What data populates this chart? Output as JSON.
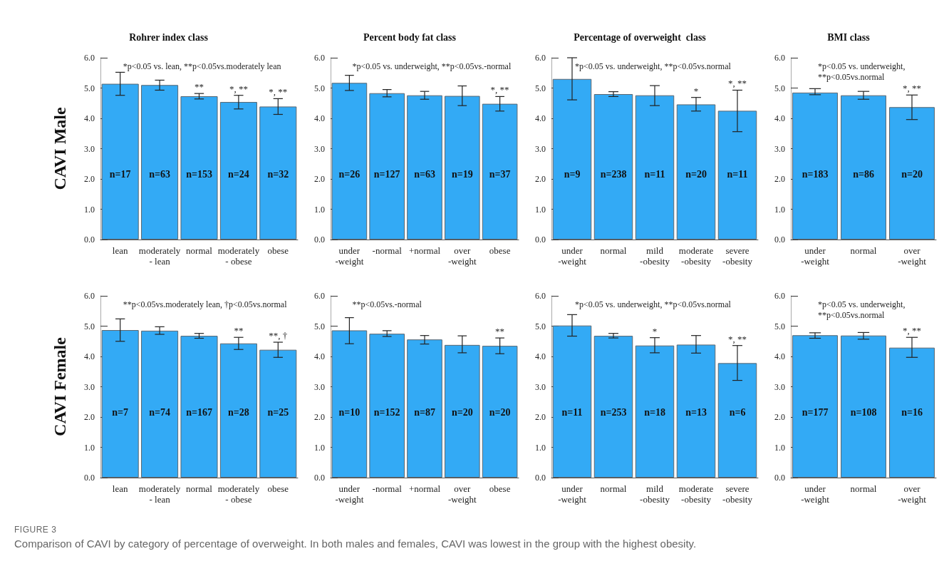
{
  "chart_data": [
    {
      "type": "bar",
      "title": "Rohrer index class",
      "ylabel": "CAVI Male",
      "categories": [
        "lean",
        "moderately\n- lean",
        "normal",
        "moderately\n- obese",
        "obese"
      ],
      "values": [
        5.14,
        5.1,
        4.73,
        4.54,
        4.39
      ],
      "errors": [
        [
          4.76,
          5.52
        ],
        [
          4.93,
          5.26
        ],
        [
          4.64,
          4.82
        ],
        [
          4.31,
          4.76
        ],
        [
          4.13,
          4.65
        ]
      ],
      "color": "#33aaf5",
      "ylim": [
        0,
        6
      ],
      "yticks": [
        {
          "value": 0,
          "label": "0.0"
        },
        {
          "value": 1,
          "label": "1.0"
        },
        {
          "value": 2,
          "label": "2.0"
        },
        {
          "value": 3,
          "label": "3.0"
        },
        {
          "value": 4,
          "label": "4.0"
        },
        {
          "value": 5,
          "label": "5.0"
        },
        {
          "value": 6,
          "label": "6.0"
        }
      ],
      "annotations": [
        "*p<0.05 vs. lean, **p<0.05vs.moderately lean",
        "n=17",
        "n=63",
        "n=153",
        "n=24",
        "n=32",
        {
          "text": "**",
          "x": "normal",
          "y": 4.82
        },
        {
          "text": "*, **",
          "x": "moderately\n- obese",
          "y": 4.76
        },
        {
          "text": "*, **",
          "x": "obese",
          "y": 4.65
        }
      ]
    },
    {
      "type": "bar",
      "title": "Percent body fat class",
      "categories": [
        "under\n-weight",
        "-normal",
        "+normal",
        "over\n-weight",
        "obese"
      ],
      "values": [
        5.17,
        4.83,
        4.76,
        4.74,
        4.48
      ],
      "errors": [
        [
          4.92,
          5.42
        ],
        [
          4.71,
          4.95
        ],
        [
          4.63,
          4.89
        ],
        [
          4.42,
          5.07
        ],
        [
          4.24,
          4.72
        ]
      ],
      "color": "#33aaf5",
      "ylim": [
        0,
        6
      ],
      "yticks": [
        {
          "value": 0,
          "label": "0.0"
        },
        {
          "value": 1,
          "label": "1.0"
        },
        {
          "value": 2,
          "label": "2.0"
        },
        {
          "value": 3,
          "label": "3.0"
        },
        {
          "value": 4,
          "label": "4.0"
        },
        {
          "value": 5,
          "label": "5.0"
        },
        {
          "value": 6,
          "label": "6.0"
        }
      ],
      "annotations": [
        "*p<0.05 vs. underweight, **p<0.05vs.-normal",
        "n=26",
        "n=127",
        "n=63",
        "n=19",
        "n=37",
        {
          "text": "*, **",
          "x": "obese",
          "y": 4.72
        }
      ]
    },
    {
      "type": "bar",
      "title": "Percentage of overweight  class",
      "categories": [
        "under\n-weight",
        "normal",
        "mild\n-obesity",
        "moderate\n-obesity",
        "severe\n-obesity"
      ],
      "values": [
        5.3,
        4.8,
        4.76,
        4.46,
        4.25
      ],
      "errors": [
        [
          4.61,
          6.0
        ],
        [
          4.72,
          4.88
        ],
        [
          4.42,
          5.08
        ],
        [
          4.24,
          4.69
        ],
        [
          3.56,
          4.93
        ]
      ],
      "color": "#33aaf5",
      "ylim": [
        0,
        6
      ],
      "yticks": [
        {
          "value": 0,
          "label": "0.0"
        },
        {
          "value": 1,
          "label": "1.0"
        },
        {
          "value": 2,
          "label": "2.0"
        },
        {
          "value": 3,
          "label": "3.0"
        },
        {
          "value": 4,
          "label": "4.0"
        },
        {
          "value": 5,
          "label": "5.0"
        },
        {
          "value": 6,
          "label": "6.0"
        }
      ],
      "annotations": [
        "*p<0.05 vs. underweight, **p<0.05vs.normal",
        "n=9",
        "n=238",
        "n=11",
        "n=20",
        "n=11",
        {
          "text": "*",
          "x": "moderate\n-obesity",
          "y": 4.69
        },
        {
          "text": "*, **",
          "x": "severe\n-obesity",
          "y": 4.93
        }
      ]
    },
    {
      "type": "bar",
      "title": "BMI class",
      "categories": [
        "under\n-weight",
        "normal",
        "over\n-weight"
      ],
      "values": [
        4.85,
        4.76,
        4.37
      ],
      "errors": [
        [
          4.78,
          4.98
        ],
        [
          4.63,
          4.89
        ],
        [
          3.96,
          4.77
        ]
      ],
      "color": "#33aaf5",
      "ylim": [
        0,
        6
      ],
      "yticks": [
        {
          "value": 0,
          "label": "0.0"
        },
        {
          "value": 1,
          "label": "1.0"
        },
        {
          "value": 2,
          "label": "2.0"
        },
        {
          "value": 3,
          "label": "3.0"
        },
        {
          "value": 4,
          "label": "4.0"
        },
        {
          "value": 5,
          "label": "5.0"
        },
        {
          "value": 6,
          "label": "6.0"
        }
      ],
      "annotations": [
        "*p<0.05 vs. underweight,\n**p<0.05vs.normal",
        "n=183",
        "n=86",
        "n=20",
        {
          "text": "*, **",
          "x": "over\n-weight",
          "y": 4.77
        }
      ]
    },
    {
      "type": "bar",
      "ylabel": "CAVI Female",
      "categories": [
        "lean",
        "moderately\n- lean",
        "normal",
        "moderately\n- obese",
        "obese"
      ],
      "values": [
        4.87,
        4.85,
        4.68,
        4.43,
        4.22
      ],
      "errors": [
        [
          4.5,
          5.24
        ],
        [
          4.73,
          4.98
        ],
        [
          4.6,
          4.76
        ],
        [
          4.23,
          4.63
        ],
        [
          3.97,
          4.47
        ]
      ],
      "color": "#33aaf5",
      "ylim": [
        0,
        6
      ],
      "yticks": [
        {
          "value": 0,
          "label": "0.0"
        },
        {
          "value": 1,
          "label": "1.0"
        },
        {
          "value": 2,
          "label": "2.0"
        },
        {
          "value": 3,
          "label": "3.0"
        },
        {
          "value": 4,
          "label": "4.0"
        },
        {
          "value": 5,
          "label": "5.0"
        },
        {
          "value": 6,
          "label": "6.0"
        }
      ],
      "annotations": [
        "**p<0.05vs.moderately lean, †p<0.05vs.normal",
        "n=7",
        "n=74",
        "n=167",
        "n=28",
        "n=25",
        {
          "text": "**",
          "x": "moderately\n- obese",
          "y": 4.63
        },
        {
          "text": "**, †",
          "x": "obese",
          "y": 4.47
        }
      ]
    },
    {
      "type": "bar",
      "categories": [
        "under\n-weight",
        "-normal",
        "+normal",
        "over\n-weight",
        "obese"
      ],
      "values": [
        4.86,
        4.75,
        4.56,
        4.38,
        4.35
      ],
      "errors": [
        [
          4.42,
          5.28
        ],
        [
          4.66,
          4.85
        ],
        [
          4.41,
          4.69
        ],
        [
          4.12,
          4.68
        ],
        [
          4.09,
          4.61
        ]
      ],
      "color": "#33aaf5",
      "ylim": [
        0,
        6
      ],
      "yticks": [
        {
          "value": 0,
          "label": "0.0"
        },
        {
          "value": 1,
          "label": "1.0"
        },
        {
          "value": 2,
          "label": "2.0"
        },
        {
          "value": 3,
          "label": "3.0"
        },
        {
          "value": 4,
          "label": "4.0"
        },
        {
          "value": 5,
          "label": "5.0"
        },
        {
          "value": 6,
          "label": "6.0"
        }
      ],
      "annotations": [
        "**p<0.05vs.-normal",
        "n=10",
        "n=152",
        "n=87",
        "n=20",
        "n=20",
        {
          "text": "**",
          "x": "obese",
          "y": 4.61
        }
      ]
    },
    {
      "type": "bar",
      "categories": [
        "under\n-weight",
        "normal",
        "mild\n-obesity",
        "moderate\n-obesity",
        "severe\n-obesity"
      ],
      "values": [
        5.02,
        4.68,
        4.36,
        4.39,
        3.78
      ],
      "errors": [
        [
          4.67,
          5.38
        ],
        [
          4.61,
          4.76
        ],
        [
          4.12,
          4.62
        ],
        [
          4.11,
          4.69
        ],
        [
          3.21,
          4.36
        ]
      ],
      "color": "#33aaf5",
      "ylim": [
        0,
        6
      ],
      "yticks": [
        {
          "value": 0,
          "label": "0.0"
        },
        {
          "value": 1,
          "label": "1.0"
        },
        {
          "value": 2,
          "label": "2.0"
        },
        {
          "value": 3,
          "label": "3.0"
        },
        {
          "value": 4,
          "label": "4.0"
        },
        {
          "value": 5,
          "label": "5.0"
        },
        {
          "value": 6,
          "label": "6.0"
        }
      ],
      "annotations": [
        "*p<0.05 vs. underweight, **p<0.05vs.normal",
        "n=11",
        "n=253",
        "n=18",
        "n=13",
        "n=6",
        {
          "text": "*",
          "x": "mild\n-obesity",
          "y": 4.62
        },
        {
          "text": "*, **",
          "x": "severe\n-obesity",
          "y": 4.36
        }
      ]
    },
    {
      "type": "bar",
      "categories": [
        "under\n-weight",
        "normal",
        "over\n-weight"
      ],
      "values": [
        4.7,
        4.69,
        4.29
      ],
      "errors": [
        [
          4.6,
          4.78
        ],
        [
          4.57,
          4.79
        ],
        [
          3.97,
          4.63
        ]
      ],
      "color": "#33aaf5",
      "ylim": [
        0,
        6
      ],
      "yticks": [
        {
          "value": 0,
          "label": "0.0"
        },
        {
          "value": 1,
          "label": "1.0"
        },
        {
          "value": 2,
          "label": "2.0"
        },
        {
          "value": 3,
          "label": "3.0"
        },
        {
          "value": 4,
          "label": "4.0"
        },
        {
          "value": 5,
          "label": "5.0"
        },
        {
          "value": 6,
          "label": "6.0"
        }
      ],
      "annotations": [
        "*p<0.05 vs. underweight,\n**p<0.05vs.normal",
        "n=177",
        "n=108",
        "n=16",
        {
          "text": "*, **",
          "x": "over\n-weight",
          "y": 4.63
        }
      ]
    },
    {
      "type": "other",
      "title": "FIGURE 3",
      "annotations": [
        "Comparison of CAVI by category of percentage of overweight. In both males and females, CAVI was lowest in the group with the highest obesity."
      ]
    }
  ]
}
